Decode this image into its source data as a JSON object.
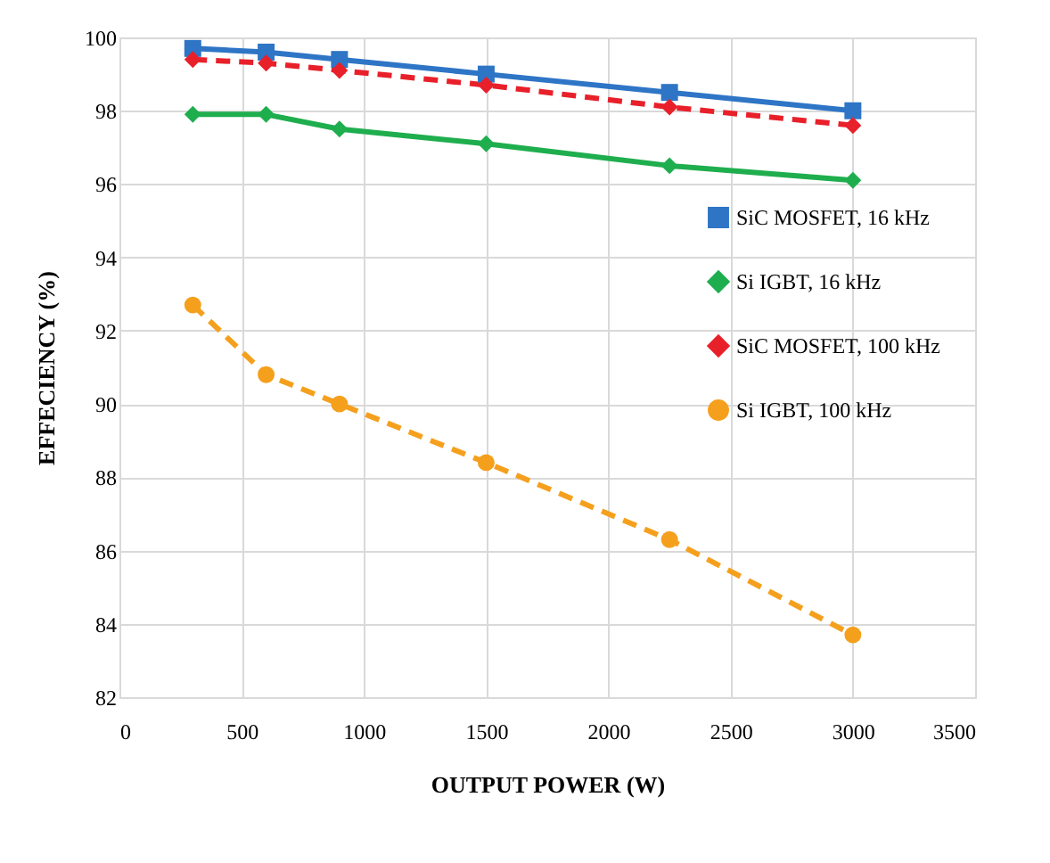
{
  "chart_data": {
    "type": "line",
    "xlabel": "OUTPUT POWER (W)",
    "ylabel": "EFFECIENCY (%)",
    "x": [
      300,
      600,
      900,
      1500,
      2250,
      3000
    ],
    "xlim": [
      0,
      3500
    ],
    "xticks": [
      0,
      500,
      1000,
      1500,
      2000,
      2500,
      3000,
      3500
    ],
    "ylim": [
      82,
      100
    ],
    "yticks": [
      82,
      84,
      86,
      88,
      90,
      92,
      94,
      96,
      98,
      100
    ],
    "grid": true,
    "legend": "right",
    "series": [
      {
        "name": "SiC MOSFET, 16 kHz",
        "color": "#2e75c6",
        "marker": "square",
        "line_style": "solid",
        "values": [
          99.7,
          99.6,
          99.4,
          99.0,
          98.5,
          98.0
        ]
      },
      {
        "name": "Si IGBT, 16 kHz",
        "color": "#1fae4e",
        "marker": "diamond",
        "line_style": "solid",
        "values": [
          97.9,
          97.9,
          97.5,
          97.1,
          96.5,
          96.1
        ]
      },
      {
        "name": "SiC MOSFET, 100 kHz",
        "color": "#e8202a",
        "marker": "diamond",
        "line_style": "dashed",
        "values": [
          99.4,
          99.3,
          99.1,
          98.7,
          98.1,
          97.6
        ]
      },
      {
        "name": "Si IGBT, 100 kHz",
        "color": "#f5a01d",
        "marker": "circle",
        "line_style": "dashed",
        "values": [
          92.7,
          90.8,
          90.0,
          88.4,
          86.3,
          83.7
        ]
      }
    ]
  }
}
